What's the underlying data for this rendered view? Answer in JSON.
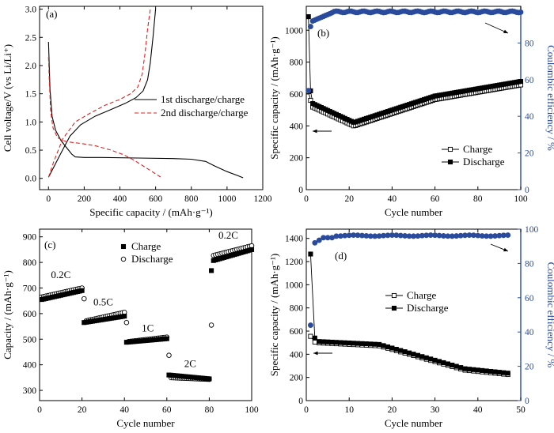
{
  "chart_data": [
    {
      "id": "a",
      "type": "line",
      "panel_label": "(a)",
      "xlabel": "Specific capacity / (mAh·g⁻¹)",
      "ylabel": "Cell voltage/V (vs Li/Li⁺)",
      "xlim": [
        -50,
        1200
      ],
      "ylim": [
        -0.2,
        3.05
      ],
      "x_ticks": [
        0,
        200,
        400,
        600,
        800,
        1000,
        1200
      ],
      "y_ticks": [
        0.0,
        0.5,
        1.0,
        1.5,
        2.0,
        2.5,
        3.0
      ],
      "legend": {
        "position": "right-center"
      },
      "series": [
        {
          "name": "1st discharge",
          "legend_label": "1st discharge/charge",
          "style": "solid",
          "color": "#000000",
          "points": [
            [
              0,
              2.42
            ],
            [
              8,
              1.6
            ],
            [
              20,
              1.1
            ],
            [
              40,
              0.85
            ],
            [
              70,
              0.67
            ],
            [
              100,
              0.55
            ],
            [
              130,
              0.43
            ],
            [
              150,
              0.38
            ],
            [
              200,
              0.37
            ],
            [
              300,
              0.37
            ],
            [
              500,
              0.36
            ],
            [
              700,
              0.35
            ],
            [
              800,
              0.34
            ],
            [
              880,
              0.3
            ],
            [
              930,
              0.22
            ],
            [
              1000,
              0.12
            ],
            [
              1060,
              0.05
            ],
            [
              1090,
              0.01
            ]
          ]
        },
        {
          "name": "1st charge",
          "style": "solid",
          "color": "#000000",
          "points": [
            [
              0,
              0.02
            ],
            [
              30,
              0.2
            ],
            [
              70,
              0.45
            ],
            [
              120,
              0.75
            ],
            [
              180,
              0.95
            ],
            [
              260,
              1.1
            ],
            [
              350,
              1.22
            ],
            [
              430,
              1.33
            ],
            [
              490,
              1.43
            ],
            [
              530,
              1.55
            ],
            [
              555,
              1.75
            ],
            [
              570,
              2.05
            ],
            [
              585,
              2.5
            ],
            [
              600,
              3.0
            ]
          ]
        },
        {
          "name": "2nd discharge",
          "legend_label": "2nd discharge/charge",
          "style": "dashed",
          "color": "#dd2222",
          "points": [
            [
              0,
              2.15
            ],
            [
              5,
              1.7
            ],
            [
              12,
              1.2
            ],
            [
              25,
              0.9
            ],
            [
              50,
              0.72
            ],
            [
              100,
              0.65
            ],
            [
              180,
              0.62
            ],
            [
              260,
              0.58
            ],
            [
              350,
              0.5
            ],
            [
              420,
              0.42
            ],
            [
              480,
              0.32
            ],
            [
              540,
              0.2
            ],
            [
              600,
              0.08
            ],
            [
              630,
              0.02
            ]
          ]
        },
        {
          "name": "2nd charge",
          "style": "dashed",
          "color": "#dd2222",
          "points": [
            [
              0,
              0.02
            ],
            [
              30,
              0.3
            ],
            [
              80,
              0.7
            ],
            [
              150,
              1.0
            ],
            [
              230,
              1.15
            ],
            [
              320,
              1.3
            ],
            [
              400,
              1.4
            ],
            [
              460,
              1.5
            ],
            [
              500,
              1.62
            ],
            [
              525,
              1.85
            ],
            [
              540,
              2.2
            ],
            [
              555,
              2.65
            ],
            [
              570,
              3.0
            ]
          ]
        }
      ]
    },
    {
      "id": "b",
      "type": "line",
      "panel_label": "(b)",
      "xlabel": "Cycle number",
      "ylabel": "Specific capacity / (mAh·g⁻¹)",
      "ylabel_right": "Coulombic efficiency / %",
      "xlim": [
        0,
        100
      ],
      "ylim": [
        0,
        1150
      ],
      "ylim_right": [
        0,
        100
      ],
      "x_ticks": [
        0,
        20,
        40,
        60,
        80,
        100
      ],
      "y_ticks": [
        0,
        200,
        400,
        600,
        800,
        1000
      ],
      "y_ticks_right": [
        0,
        20,
        40,
        60,
        80
      ],
      "legend": {
        "position": "bottom-right"
      },
      "series": [
        {
          "name": "Charge",
          "marker": "open-square"
        },
        {
          "name": "Discharge",
          "marker": "filled-square"
        },
        {
          "name": "Coulombic efficiency",
          "marker": "filled-circle",
          "color": "#2a4b9b"
        }
      ]
    },
    {
      "id": "c",
      "type": "scatter",
      "panel_label": "(c)",
      "xlabel": "Cycle number",
      "ylabel": "Capacity / (mAh·g⁻¹)",
      "xlim": [
        0,
        100
      ],
      "ylim": [
        260,
        930
      ],
      "x_ticks": [
        0,
        20,
        40,
        60,
        80,
        100
      ],
      "y_ticks": [
        300,
        400,
        500,
        600,
        700,
        800,
        900
      ],
      "legend": {
        "position": "top-center"
      },
      "rate_labels": [
        {
          "text": "0.2C",
          "x": 10,
          "y": 738
        },
        {
          "text": "0.5C",
          "x": 30,
          "y": 632
        },
        {
          "text": "1C",
          "x": 51,
          "y": 530
        },
        {
          "text": "2C",
          "x": 71,
          "y": 391
        },
        {
          "text": "0.2C",
          "x": 89,
          "y": 893
        }
      ],
      "series": [
        {
          "name": "Charge",
          "marker": "filled-square"
        },
        {
          "name": "Discharge",
          "marker": "open-circle"
        }
      ]
    },
    {
      "id": "d",
      "type": "line",
      "panel_label": "(d)",
      "xlabel": "Cycle number",
      "ylabel": "Specific capacity / (mAh·g⁻¹)",
      "ylabel_right": "Coulombic efficiency / %",
      "xlim": [
        0,
        50
      ],
      "ylim": [
        0,
        1480
      ],
      "ylim_right": [
        0,
        100
      ],
      "x_ticks": [
        0,
        10,
        20,
        30,
        40,
        50
      ],
      "y_ticks": [
        0,
        200,
        400,
        600,
        800,
        1000,
        1200,
        1400
      ],
      "y_ticks_right": [
        0,
        20,
        40,
        60,
        80,
        100
      ],
      "legend": {
        "position": "center-right"
      },
      "series": [
        {
          "name": "Charge",
          "marker": "open-square"
        },
        {
          "name": "Discharge",
          "marker": "filled-square"
        },
        {
          "name": "Coulombic efficiency",
          "marker": "filled-circle",
          "color": "#2a4b9b"
        }
      ]
    }
  ]
}
